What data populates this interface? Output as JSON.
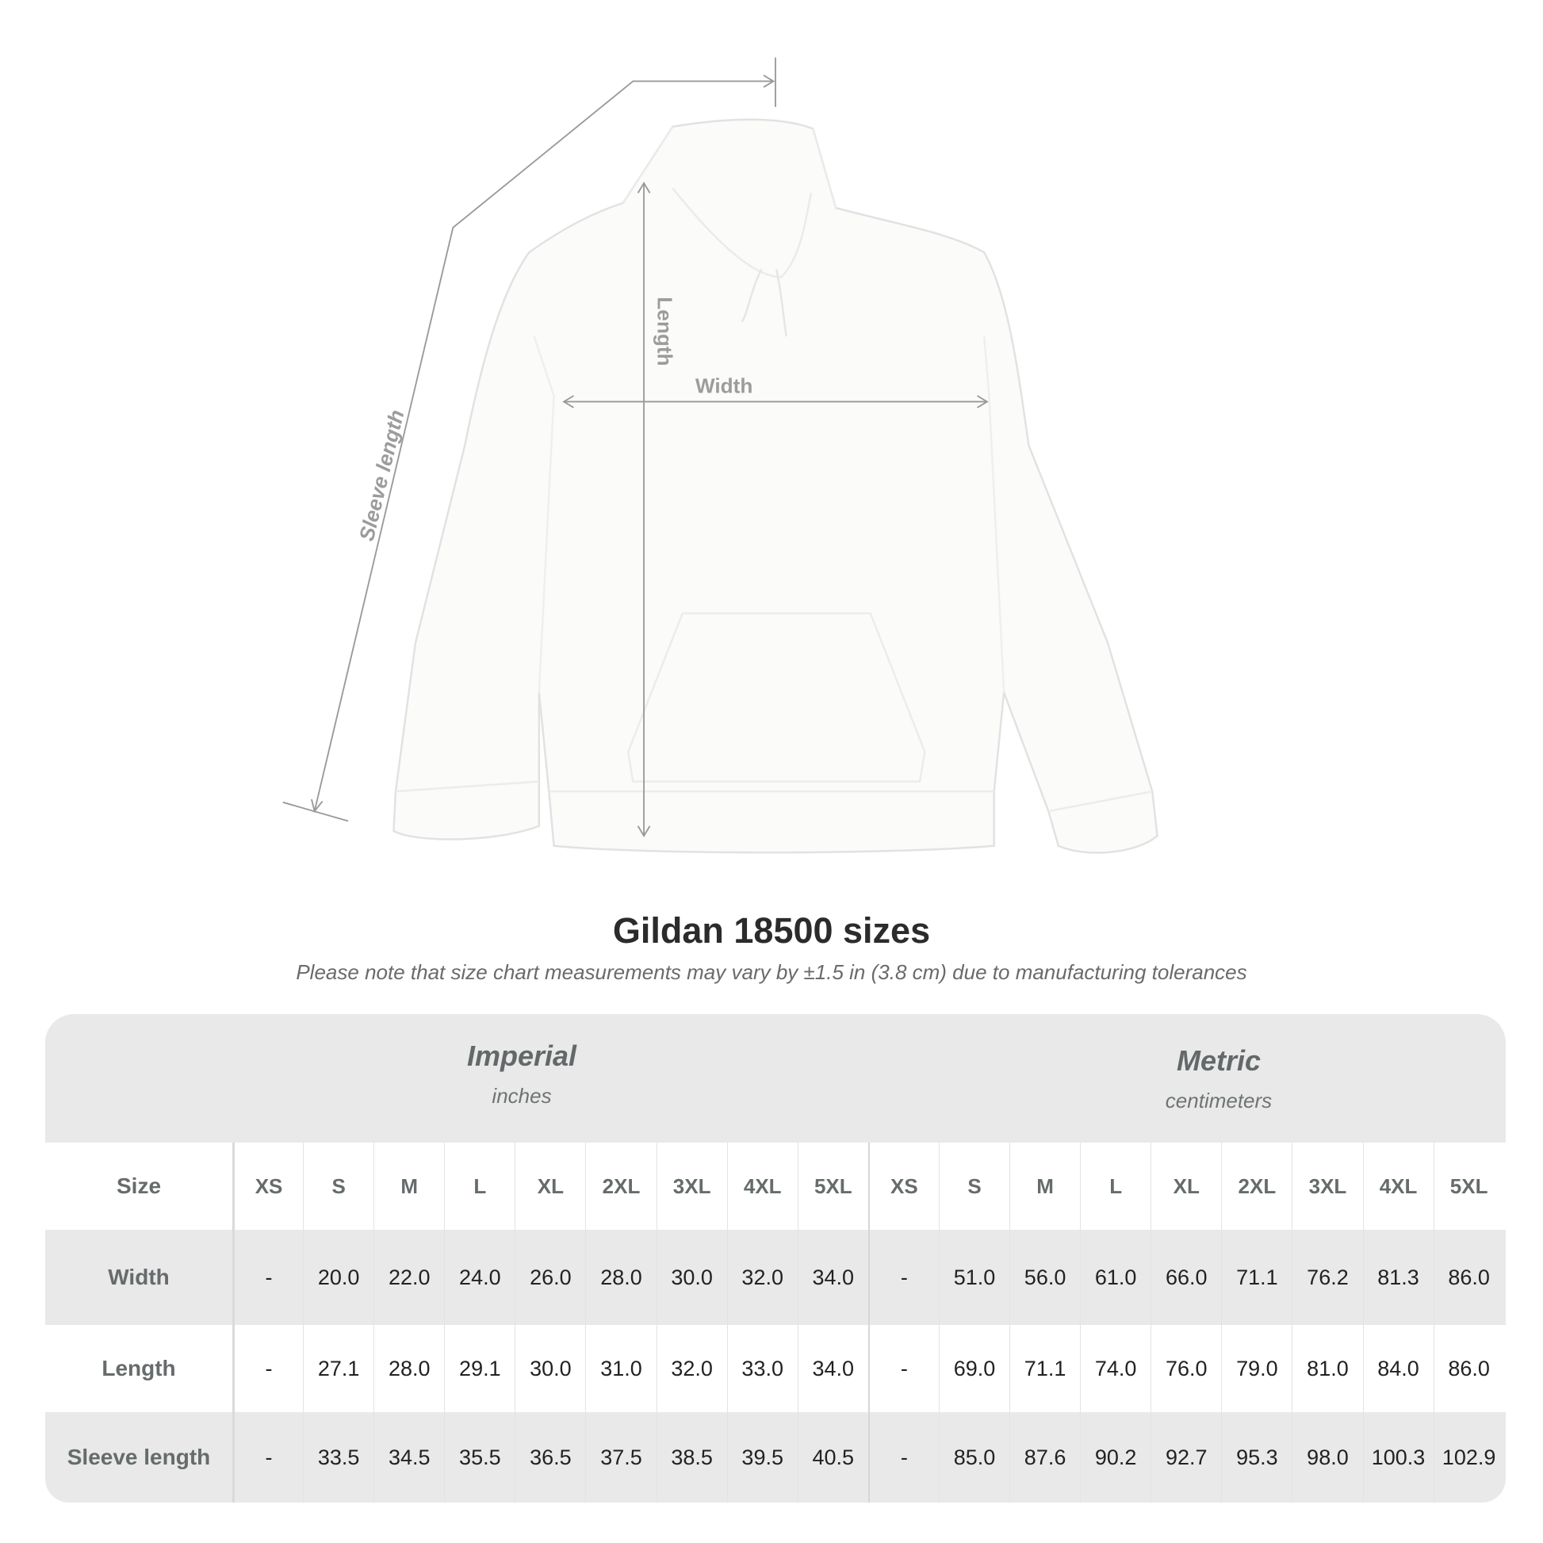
{
  "diagram": {
    "labels": {
      "sleeve_length": "Sleeve length",
      "length": "Length",
      "width": "Width"
    }
  },
  "title": "Gildan 18500 sizes",
  "subtitle": "Please note that size chart measurements may vary by ±1.5 in (3.8 cm) due to manufacturing tolerances",
  "table": {
    "imperial": {
      "name": "Imperial",
      "unit": "inches"
    },
    "metric": {
      "name": "Metric",
      "unit": "centimeters"
    },
    "size_label": "Size",
    "sizes": [
      "XS",
      "S",
      "M",
      "L",
      "XL",
      "2XL",
      "3XL",
      "4XL",
      "5XL"
    ],
    "rows": [
      {
        "label": "Width",
        "imperial": [
          "-",
          "20.0",
          "22.0",
          "24.0",
          "26.0",
          "28.0",
          "30.0",
          "32.0",
          "34.0"
        ],
        "metric": [
          "-",
          "51.0",
          "56.0",
          "61.0",
          "66.0",
          "71.1",
          "76.2",
          "81.3",
          "86.0"
        ]
      },
      {
        "label": "Length",
        "imperial": [
          "-",
          "27.1",
          "28.0",
          "29.1",
          "30.0",
          "31.0",
          "32.0",
          "33.0",
          "34.0"
        ],
        "metric": [
          "-",
          "69.0",
          "71.1",
          "74.0",
          "76.0",
          "79.0",
          "81.0",
          "84.0",
          "86.0"
        ]
      },
      {
        "label": "Sleeve length",
        "imperial": [
          "-",
          "33.5",
          "34.5",
          "35.5",
          "36.5",
          "37.5",
          "38.5",
          "39.5",
          "40.5"
        ],
        "metric": [
          "-",
          "85.0",
          "87.6",
          "90.2",
          "92.7",
          "95.3",
          "98.0",
          "100.3",
          "102.9"
        ]
      }
    ]
  },
  "colors": {
    "band": "#e9e9e9",
    "label_text": "#666b6c",
    "measure_line": "#9a9a9a"
  }
}
